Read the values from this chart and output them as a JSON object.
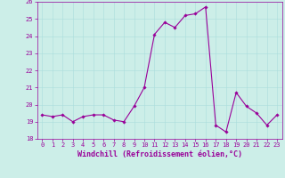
{
  "x": [
    0,
    1,
    2,
    3,
    4,
    5,
    6,
    7,
    8,
    9,
    10,
    11,
    12,
    13,
    14,
    15,
    16,
    17,
    18,
    19,
    20,
    21,
    22,
    23
  ],
  "y": [
    19.4,
    19.3,
    19.4,
    19.0,
    19.3,
    19.4,
    19.4,
    19.1,
    19.0,
    19.9,
    21.0,
    24.1,
    24.8,
    24.5,
    25.2,
    25.3,
    25.7,
    18.8,
    18.4,
    20.7,
    19.9,
    19.5,
    18.8,
    19.4
  ],
  "line_color": "#990099",
  "marker": "D",
  "marker_size": 1.8,
  "xlabel": "Windchill (Refroidissement éolien,°C)",
  "ylabel": "",
  "ylim": [
    18,
    26
  ],
  "xlim": [
    -0.5,
    23.5
  ],
  "yticks": [
    18,
    19,
    20,
    21,
    22,
    23,
    24,
    25,
    26
  ],
  "xticks": [
    0,
    1,
    2,
    3,
    4,
    5,
    6,
    7,
    8,
    9,
    10,
    11,
    12,
    13,
    14,
    15,
    16,
    17,
    18,
    19,
    20,
    21,
    22,
    23
  ],
  "xtick_labels": [
    "0",
    "1",
    "2",
    "3",
    "4",
    "5",
    "6",
    "7",
    "8",
    "9",
    "10",
    "11",
    "12",
    "13",
    "14",
    "15",
    "16",
    "17",
    "18",
    "19",
    "20",
    "21",
    "22",
    "23"
  ],
  "grid_color": "#aadddd",
  "background_color": "#cceee8",
  "line_width": 0.8,
  "tick_fontsize": 5.0,
  "xlabel_fontsize": 6.0,
  "fig_width": 3.2,
  "fig_height": 2.0,
  "dpi": 100
}
